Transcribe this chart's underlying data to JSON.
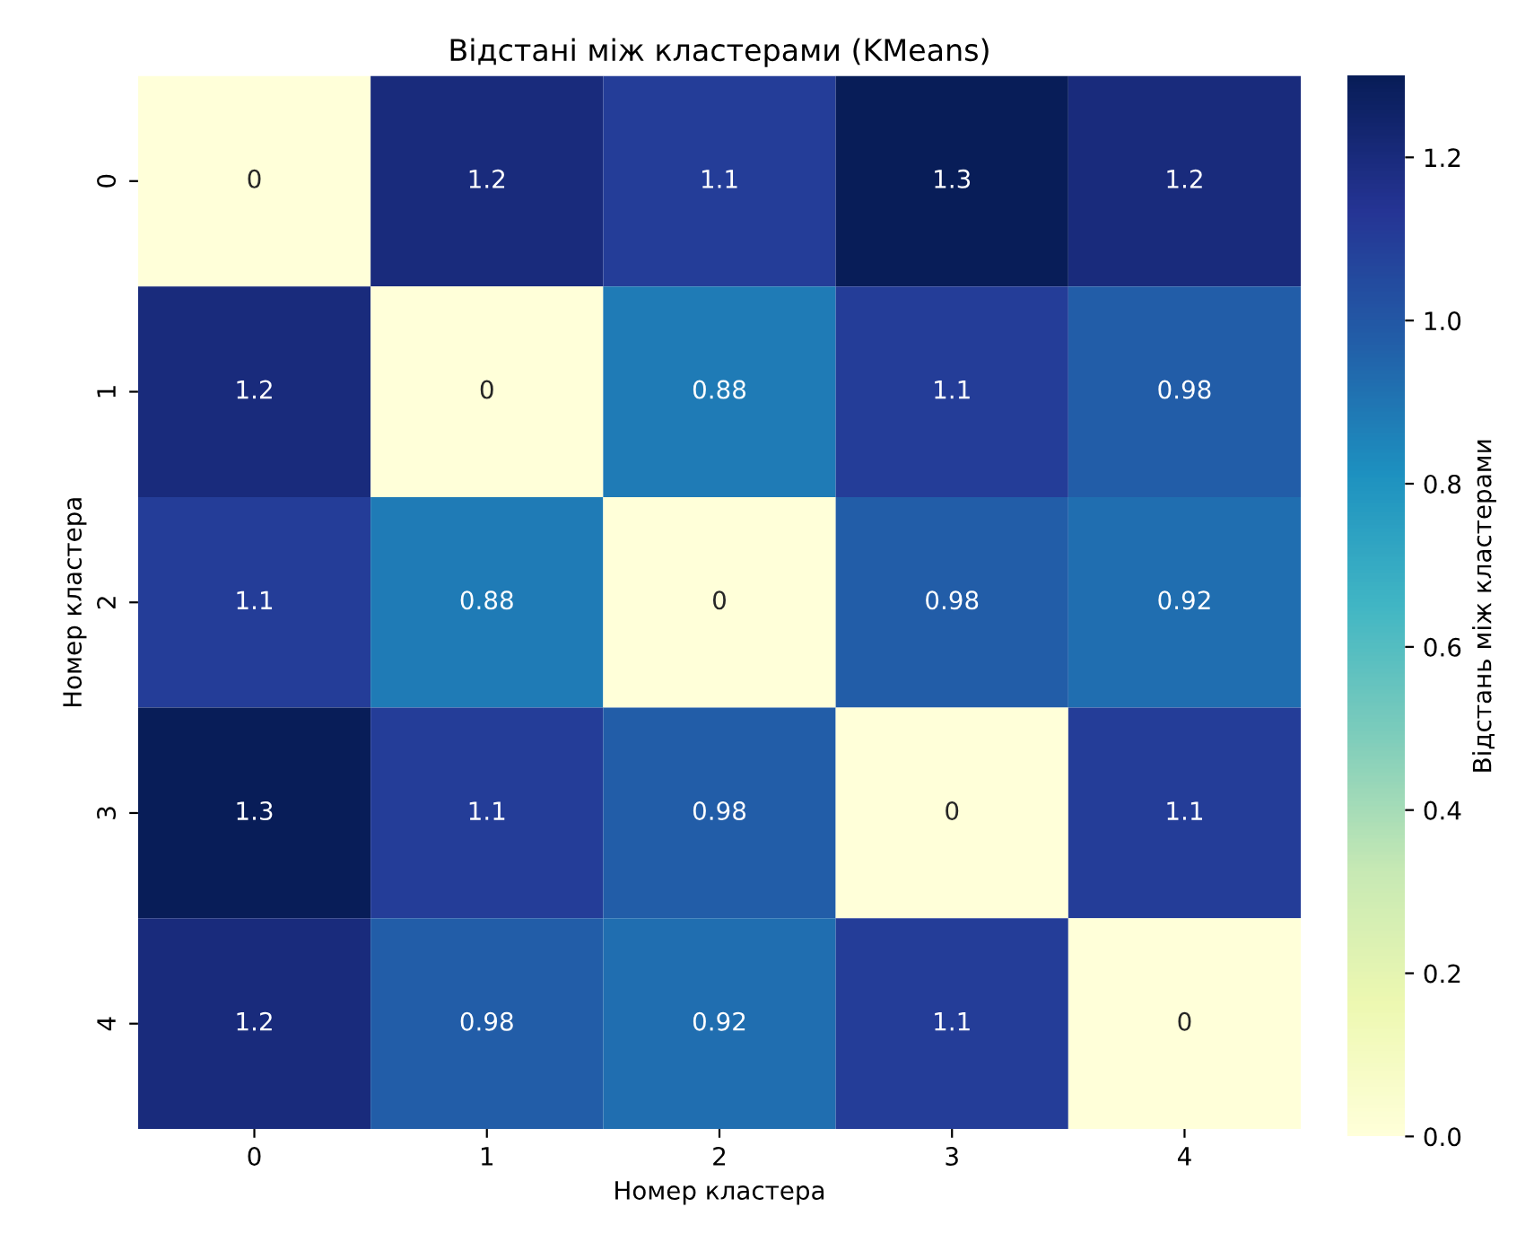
{
  "chart_data": {
    "type": "heatmap",
    "title": "Відстані між кластерами (KMeans)",
    "xlabel": "Номер кластера",
    "ylabel": "Номер кластера",
    "clabel": "Відстань між кластерами",
    "categories": [
      "0",
      "1",
      "2",
      "3",
      "4"
    ],
    "y_categories": [
      "0",
      "1",
      "2",
      "3",
      "4"
    ],
    "cells": [
      [
        0,
        1.2,
        1.1,
        1.3,
        1.2
      ],
      [
        1.2,
        0,
        0.88,
        1.1,
        0.98
      ],
      [
        1.1,
        0.88,
        0,
        0.98,
        0.92
      ],
      [
        1.3,
        1.1,
        0.98,
        0,
        1.1
      ],
      [
        1.2,
        0.98,
        0.92,
        1.1,
        0
      ]
    ],
    "clim": [
      0,
      1.3
    ],
    "cticks": [
      {
        "value": 0,
        "label": "0.0"
      },
      {
        "value": 0.2,
        "label": "0.2"
      },
      {
        "value": 0.4,
        "label": "0.4"
      },
      {
        "value": 0.6,
        "label": "0.6"
      },
      {
        "value": 0.8,
        "label": "0.8"
      },
      {
        "value": 1.0,
        "label": "1.0"
      },
      {
        "value": 1.2,
        "label": "1.2"
      }
    ],
    "data_labels": true
  }
}
